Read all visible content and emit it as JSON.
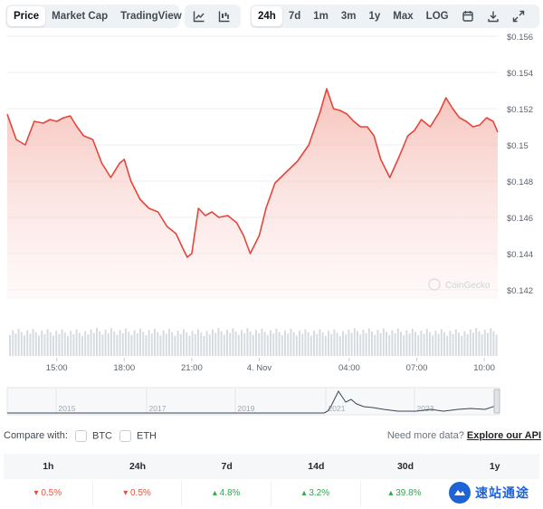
{
  "toolbar": {
    "view_tabs": [
      "Price",
      "Market Cap",
      "TradingView"
    ],
    "active_view": "Price",
    "range_tabs": [
      "24h",
      "7d",
      "1m",
      "3m",
      "1y",
      "Max",
      "LOG"
    ],
    "active_range": "24h",
    "icons": [
      "line-chart-icon",
      "candlestick-icon",
      "calendar-icon",
      "download-icon",
      "fullscreen-icon"
    ]
  },
  "chart_data": {
    "type": "area",
    "y_ticks": [
      "$0.156",
      "$0.154",
      "$0.152",
      "$0.15",
      "$0.148",
      "$0.146",
      "$0.144",
      "$0.142"
    ],
    "ylim": [
      0.142,
      0.156
    ],
    "x_ticks": [
      "15:00",
      "18:00",
      "21:00",
      "4. Nov",
      "04:00",
      "07:00",
      "10:00"
    ],
    "x_hours": [
      15,
      18,
      21,
      24,
      28,
      31,
      34
    ],
    "xlim": [
      12.8,
      34.6
    ],
    "series": [
      {
        "x": [
          12.8,
          13.2,
          13.6,
          14.0,
          14.4,
          14.7,
          15.0,
          15.3,
          15.6,
          15.9,
          16.2,
          16.6,
          17.0,
          17.4,
          17.8,
          18.0,
          18.3,
          18.7,
          19.1,
          19.5,
          19.9,
          20.3,
          20.6,
          20.8,
          21.0,
          21.3,
          21.6,
          21.9,
          22.2,
          22.6,
          23.0,
          23.3,
          23.6,
          24.0,
          24.3,
          24.7,
          25.2,
          25.7,
          26.2,
          26.7,
          27.0,
          27.3,
          27.6,
          27.9,
          28.2,
          28.5,
          28.8,
          29.1,
          29.4,
          29.8,
          30.2,
          30.6,
          30.9,
          31.2,
          31.6,
          32.0,
          32.3,
          32.6,
          32.9,
          33.2,
          33.5,
          33.8,
          34.1,
          34.4,
          34.6
        ],
        "values": [
          0.1522,
          0.1508,
          0.1505,
          0.1518,
          0.1517,
          0.1519,
          0.1518,
          0.152,
          0.1521,
          0.1515,
          0.151,
          0.1508,
          0.1495,
          0.1487,
          0.1495,
          0.1497,
          0.1485,
          0.1475,
          0.147,
          0.1468,
          0.146,
          0.1456,
          0.1448,
          0.1443,
          0.1445,
          0.147,
          0.1466,
          0.1468,
          0.1465,
          0.1466,
          0.1462,
          0.1455,
          0.1445,
          0.1455,
          0.147,
          0.1484,
          0.149,
          0.1496,
          0.1505,
          0.1523,
          0.1536,
          0.1525,
          0.1524,
          0.1522,
          0.1518,
          0.1515,
          0.1515,
          0.151,
          0.1497,
          0.1487,
          0.1498,
          0.151,
          0.1513,
          0.1519,
          0.1515,
          0.1523,
          0.1531,
          0.1525,
          0.152,
          0.1518,
          0.1515,
          0.1516,
          0.152,
          0.1518,
          0.1512
        ]
      }
    ],
    "annotations": [
      "CoinGecko"
    ],
    "overview_years": [
      "2015",
      "2017",
      "2019",
      "2021",
      "2023"
    ],
    "line_color": "#e3463b",
    "fill_color": "#f6c4bd",
    "grid": true
  },
  "compare": {
    "label": "Compare with:",
    "options": [
      "BTC",
      "ETH"
    ],
    "more_data_label": "Need more data?",
    "explore_link": "Explore our API"
  },
  "performance": {
    "headers": [
      "1h",
      "24h",
      "7d",
      "14d",
      "30d",
      "1y"
    ],
    "values": [
      "0.5%",
      "0.5%",
      "4.8%",
      "3.2%",
      "39.8%",
      ""
    ],
    "directions": [
      "down",
      "down",
      "up",
      "up",
      "up",
      ""
    ]
  },
  "watermark": {
    "text": "速站通途"
  },
  "colors": {
    "up": "#2fa84f",
    "down": "#e15241",
    "accent": "#1e63d6"
  }
}
